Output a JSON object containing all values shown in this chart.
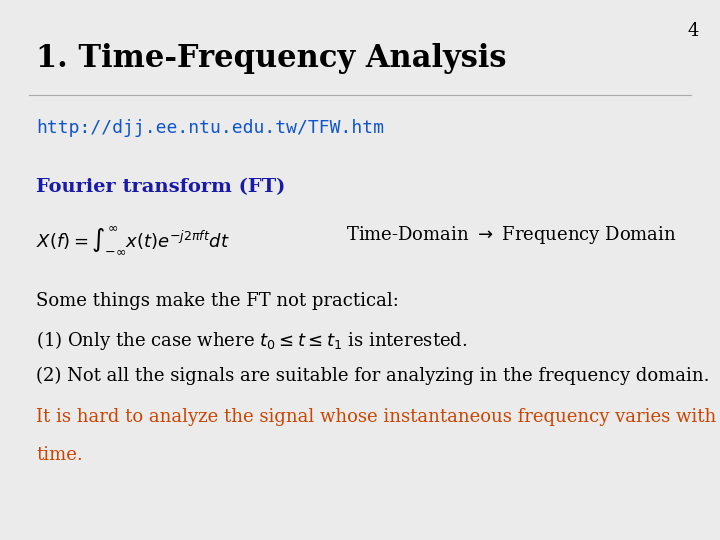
{
  "title": "1. Time-Frequency Analysis",
  "page_number": "4",
  "url": "http://djj.ee.ntu.edu.tw/TFW.htm",
  "section_label": "Fourier transform (FT)",
  "body_text_1": "Some things make the FT not practical:",
  "body_text_3": "(2) Not all the signals are suitable for analyzing in the frequency domain.",
  "highlight_line1": "It is hard to analyze the signal whose instantaneous frequency varies with",
  "highlight_line2": "time.",
  "title_color": "#000000",
  "url_color": "#1155CC",
  "section_color": "#1a1aaa",
  "body_color": "#000000",
  "highlight_color": "#CC4400",
  "bg_color": "#EBEBEB",
  "title_fontsize": 22,
  "url_fontsize": 13,
  "section_fontsize": 14,
  "body_fontsize": 13,
  "page_num_fontsize": 13
}
